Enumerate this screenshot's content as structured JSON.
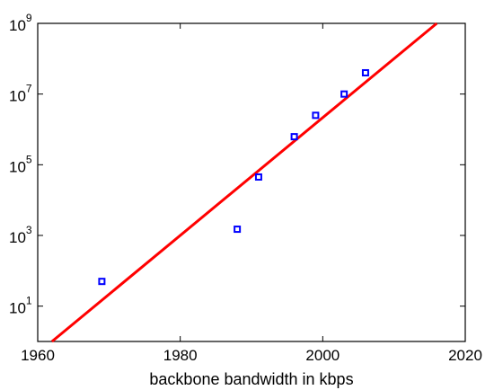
{
  "chart_data": {
    "type": "scatter",
    "title": "",
    "xlabel": "backbone bandwidth in kbps",
    "ylabel": "",
    "xlim": [
      1960,
      2020
    ],
    "ylim_log10": [
      0,
      9
    ],
    "yscale": "log",
    "grid": false,
    "x_ticks": [
      "1960",
      "1980",
      "2000",
      "2020"
    ],
    "y_ticks": [
      {
        "base": "10",
        "exp": "1"
      },
      {
        "base": "10",
        "exp": "3"
      },
      {
        "base": "10",
        "exp": "5"
      },
      {
        "base": "10",
        "exp": "7"
      },
      {
        "base": "10",
        "exp": "9"
      }
    ],
    "series": [
      {
        "marker": "square",
        "color": "#0000ff",
        "points": [
          {
            "x": 1969,
            "y": 50
          },
          {
            "x": 1988,
            "y": 1500
          },
          {
            "x": 1991,
            "y": 45000
          },
          {
            "x": 1996,
            "y": 622000
          },
          {
            "x": 1999,
            "y": 2500000
          },
          {
            "x": 2003,
            "y": 10000000
          },
          {
            "x": 2006,
            "y": 40000000
          }
        ]
      },
      {
        "type": "line",
        "color": "#ff0000",
        "points": [
          {
            "x": 1962,
            "y": 1
          },
          {
            "x": 2016,
            "y": 1000000000
          }
        ]
      }
    ]
  }
}
